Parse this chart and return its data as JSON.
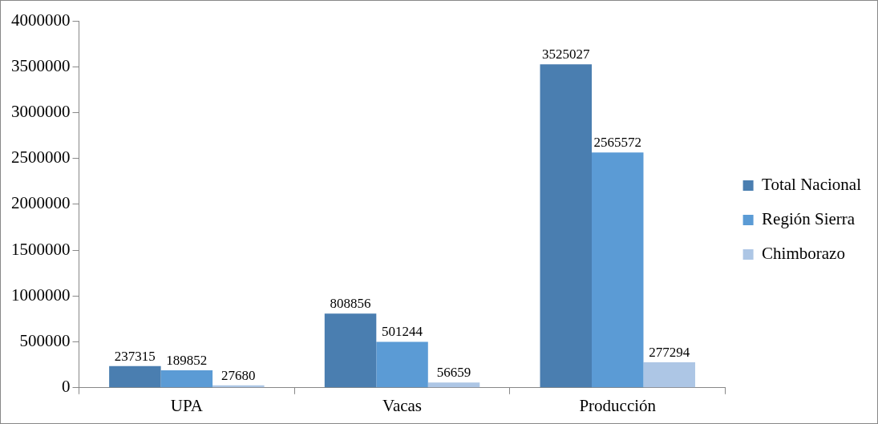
{
  "chart_data": {
    "type": "bar",
    "categories": [
      "UPA",
      "Vacas",
      "Producción"
    ],
    "series": [
      {
        "name": "Total Nacional",
        "color": "#4a7eb0",
        "values": [
          237315,
          808856,
          3525027
        ]
      },
      {
        "name": "Región Sierra",
        "color": "#5b9bd5",
        "values": [
          189852,
          501244,
          2565572
        ]
      },
      {
        "name": "Chimborazo",
        "color": "#adc6e5",
        "values": [
          27680,
          56659,
          277294
        ]
      }
    ],
    "ylim": [
      0,
      4000000
    ],
    "yticks": [
      0,
      500000,
      1000000,
      1500000,
      2000000,
      2500000,
      3000000,
      3500000,
      4000000
    ],
    "grid": false,
    "legend": "right",
    "data_labels": true
  }
}
